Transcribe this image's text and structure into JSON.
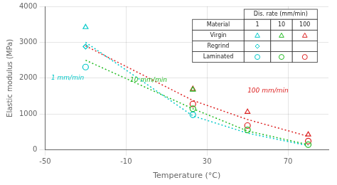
{
  "chart_data": {
    "type": "scatter",
    "xlabel": "Temperature (°C)",
    "ylabel": "Elastic modulus (MPa)",
    "xlim": [
      -50,
      90
    ],
    "ylim": [
      0,
      4000
    ],
    "xticks": [
      -50,
      -10,
      30,
      70
    ],
    "yticks": [
      0,
      1000,
      2000,
      3000,
      4000
    ],
    "grid": true,
    "legend": "upper right",
    "legend_table": {
      "title": "Dis. rate (mm/min)",
      "header": "Material",
      "columns": [
        "1",
        "10",
        "100"
      ],
      "rows": [
        "Virgin",
        "Regrind",
        "Laminated"
      ]
    },
    "series": [
      {
        "type": "line",
        "line_style": "dotted",
        "rate": "1",
        "color": "#00C8C8",
        "x": [
          -30,
          23,
          50,
          80
        ],
        "values": [
          3000,
          950,
          470,
          120
        ]
      },
      {
        "type": "line",
        "line_style": "dotted",
        "rate": "10",
        "color": "#22BB22",
        "x": [
          -30,
          23,
          50,
          80
        ],
        "values": [
          2500,
          1150,
          530,
          148
        ]
      },
      {
        "type": "line",
        "line_style": "dotted",
        "rate": "100",
        "color": "#DD2222",
        "x": [
          -30,
          23,
          50,
          80
        ],
        "values": [
          2900,
          1380,
          850,
          380
        ]
      },
      {
        "type": "scatter",
        "name": "Virgin",
        "rate": "1",
        "marker": "triangle",
        "color": "#00C8C8",
        "x": [
          -30
        ],
        "values": [
          3420
        ]
      },
      {
        "type": "scatter",
        "name": "Virgin",
        "rate": "10",
        "marker": "triangle",
        "color": "#22BB22",
        "x": [
          23
        ],
        "values": [
          1680
        ]
      },
      {
        "type": "scatter",
        "name": "Virgin",
        "rate": "100",
        "marker": "triangle",
        "color": "#DD2222",
        "x": [
          23,
          50,
          80
        ],
        "values": [
          1700,
          1060,
          430
        ]
      },
      {
        "type": "scatter",
        "name": "Regrind",
        "rate": "1",
        "marker": "diamond",
        "color": "#00C8C8",
        "x": [
          -30
        ],
        "values": [
          2880
        ]
      },
      {
        "type": "scatter",
        "name": "Laminated",
        "rate": "1",
        "marker": "circle",
        "color": "#00C8C8",
        "x": [
          -30,
          23
        ],
        "values": [
          2310,
          980
        ]
      },
      {
        "type": "scatter",
        "name": "Laminated",
        "rate": "10",
        "marker": "circle",
        "color": "#22BB22",
        "x": [
          23,
          50,
          80
        ],
        "values": [
          1150,
          560,
          148
        ]
      },
      {
        "type": "scatter",
        "name": "Laminated",
        "rate": "100",
        "marker": "circle",
        "color": "#DD2222",
        "x": [
          23,
          50,
          80
        ],
        "values": [
          1280,
          680,
          248
        ]
      }
    ],
    "annotations": [
      {
        "text": "1 mm/min",
        "x": -47,
        "y": 1950,
        "color": "#00C8C8"
      },
      {
        "text": "10 mm/min",
        "x": -8,
        "y": 1900,
        "color": "#22BB22"
      },
      {
        "text": "100 mm/min",
        "x": 50,
        "y": 1600,
        "color": "#DD2222"
      }
    ]
  }
}
